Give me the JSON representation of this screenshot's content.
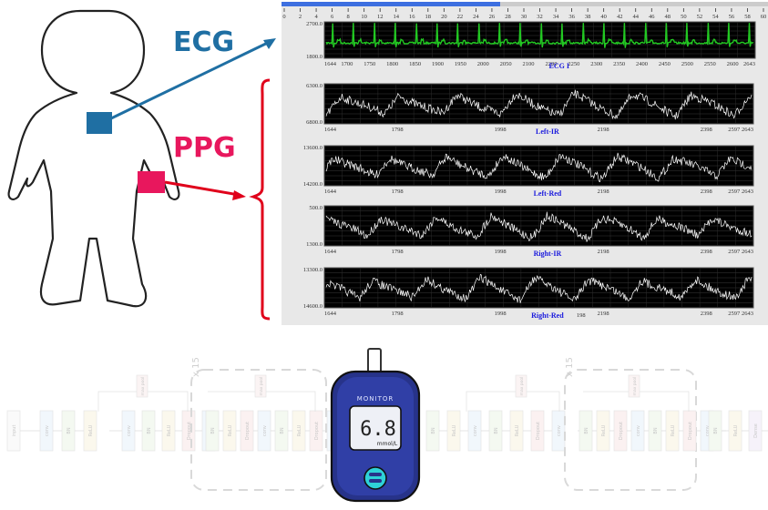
{
  "labels": {
    "ecg": "ECG",
    "ppg": "PPG"
  },
  "colors": {
    "ecg": "#1f6fa3",
    "ppg": "#e8175d",
    "bracket": "#e0001b",
    "ecg_trace": "#22c922",
    "ppg_trace": "#ffffff",
    "channel_label": "#1a1add",
    "meter_body": "#27338a"
  },
  "ecg_panel": {
    "top_scale": [
      "0",
      "2",
      "4",
      "6",
      "8",
      "10",
      "12",
      "14",
      "16",
      "18",
      "20",
      "22",
      "24",
      "26",
      "28",
      "30",
      "32",
      "34",
      "36",
      "38",
      "40",
      "42",
      "44",
      "46",
      "48",
      "50",
      "52",
      "54",
      "56",
      "58",
      "60"
    ],
    "y_top": "2700.0",
    "y_bottom": "1800.0",
    "x_ticks": [
      "1644",
      "1700",
      "1750",
      "1800",
      "1850",
      "1900",
      "1950",
      "2000",
      "2050",
      "2100",
      "2200",
      "2250",
      "2300",
      "2350",
      "2400",
      "2450",
      "2500",
      "2550",
      "2600",
      "2643"
    ],
    "channel": "ECG I"
  },
  "ppg_panels": [
    {
      "y_top": "6300.0",
      "y_bottom": "6800.0",
      "channel": "Left-IR",
      "x_ticks": [
        "1644",
        "1798",
        "1998",
        "2198",
        "2398",
        "2597",
        "2643"
      ]
    },
    {
      "y_top": "13600.0",
      "y_bottom": "14200.0",
      "channel": "Left-Red",
      "x_ticks": [
        "1644",
        "1798",
        "1998",
        "2198",
        "2398",
        "2597",
        "2643"
      ]
    },
    {
      "y_top": "500.0",
      "y_bottom": "1300.0",
      "channel": "Right-IR",
      "x_ticks": [
        "1644",
        "1798",
        "1998",
        "2198",
        "2398",
        "2597",
        "2643"
      ]
    },
    {
      "y_top": "13300.0",
      "y_bottom": "14600.0",
      "channel": "Right-Red",
      "x_ticks": [
        "1644",
        "1798",
        "1998",
        "2198",
        "2398",
        "2597",
        "2643"
      ],
      "channel_suffix": "198"
    }
  ],
  "network": {
    "input_label": "input",
    "left_chain": [
      "conv",
      "BN",
      "ReLU"
    ],
    "block_a": [
      "conv",
      "BN",
      "ReLU",
      "Dropout",
      "conv"
    ],
    "block_b": [
      "BN",
      "ReLU",
      "Dropout",
      "conv",
      "BN",
      "ReLU",
      "Dropout",
      "conv"
    ],
    "pool_label": "max pool",
    "repeat_label": "x 15",
    "right_chain": [
      "BN",
      "ReLU",
      "conv",
      "BN",
      "ReLU",
      "Dropout",
      "conv"
    ],
    "block_c": [
      "BN",
      "ReLU",
      "Dropout",
      "conv",
      "BN",
      "ReLU",
      "Dropout",
      "conv"
    ],
    "tail": [
      "BN",
      "ReLU",
      "Dense",
      "Softmax"
    ]
  },
  "meter": {
    "brand": "MONITOR",
    "reading": "6.8",
    "unit": "mmol/L"
  }
}
